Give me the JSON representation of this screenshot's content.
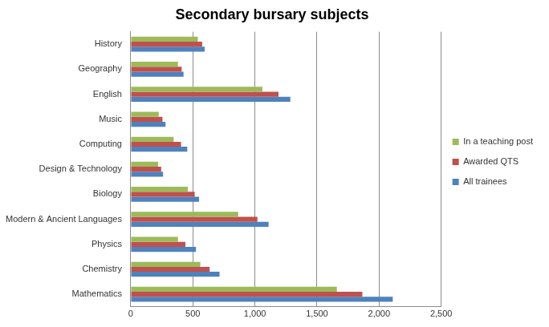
{
  "chart_data": {
    "type": "bar",
    "orientation": "horizontal",
    "title": "Secondary bursary subjects",
    "categories": [
      "History",
      "Geography",
      "English",
      "Music",
      "Computing",
      "Design & Technology",
      "Biology",
      "Modern & Ancient Languages",
      "Physics",
      "Chemistry",
      "Mathematics"
    ],
    "series": [
      {
        "name": "In a teaching post",
        "color": "#9bbb59",
        "values": [
          540,
          380,
          1060,
          225,
          345,
          220,
          460,
          865,
          380,
          560,
          1660
        ]
      },
      {
        "name": "Awarded QTS",
        "color": "#c0504d",
        "values": [
          575,
          410,
          1190,
          255,
          405,
          245,
          515,
          1020,
          440,
          635,
          1865
        ]
      },
      {
        "name": "All trainees",
        "color": "#4f81bd",
        "values": [
          595,
          425,
          1285,
          280,
          455,
          260,
          550,
          1110,
          525,
          715,
          2110
        ]
      }
    ],
    "xlim": [
      0,
      2500
    ],
    "xticks": [
      0,
      500,
      {
        "value": 1000,
        "label": "1,000"
      },
      {
        "value": 1500,
        "label": "1,500"
      },
      {
        "value": 2000,
        "label": "2,000"
      },
      {
        "value": 2500,
        "label": "2,500"
      }
    ],
    "grid": true,
    "legend": "right"
  }
}
